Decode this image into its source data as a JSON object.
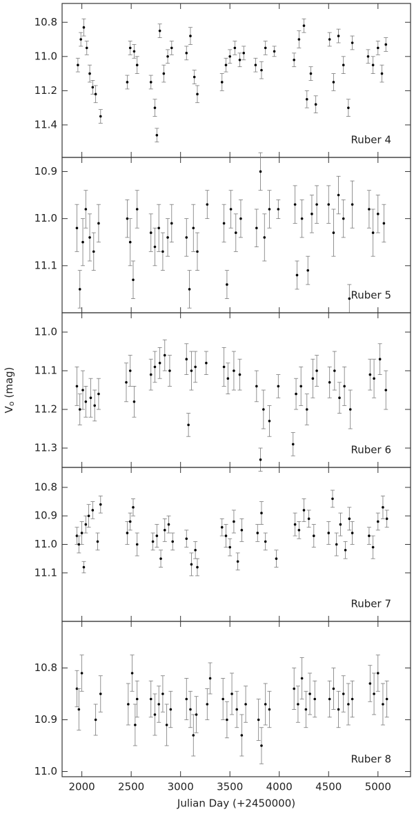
{
  "chart_data": [
    {
      "type": "scatter",
      "annotation": "Ruber 4",
      "y_inverted": true,
      "xlim": [
        1800,
        5330
      ],
      "xticks": [
        2000,
        2500,
        3000,
        3500,
        4000,
        4500,
        5000
      ],
      "show_xtick_labels": false,
      "ylim": [
        10.69,
        11.59
      ],
      "yticks": [
        10.8,
        {
          "value": 11,
          "label": "11.0"
        },
        11.2,
        11.4
      ],
      "color": "#000000",
      "error_color": "#777777",
      "x": [
        1960,
        1990,
        2020,
        2050,
        2080,
        2110,
        2140,
        2190,
        2460,
        2490,
        2530,
        2560,
        2700,
        2740,
        2760,
        2790,
        2830,
        2870,
        2910,
        3060,
        3100,
        3140,
        3170,
        3420,
        3460,
        3500,
        3550,
        3600,
        3640,
        3760,
        3820,
        3860,
        3950,
        4150,
        4200,
        4250,
        4280,
        4320,
        4370,
        4510,
        4550,
        4600,
        4650,
        4700,
        4740,
        4900,
        4950,
        5000,
        5040,
        5080
      ],
      "values": [
        11.05,
        10.9,
        10.83,
        10.95,
        11.1,
        11.18,
        11.22,
        11.35,
        11.15,
        10.95,
        10.97,
        11.05,
        11.15,
        11.3,
        11.46,
        10.85,
        11.1,
        11.0,
        10.95,
        10.98,
        10.88,
        11.12,
        11.22,
        11.15,
        11.05,
        11.0,
        10.95,
        11.02,
        10.98,
        11.05,
        11.08,
        10.95,
        10.97,
        11.02,
        10.9,
        10.82,
        11.25,
        11.1,
        11.28,
        10.9,
        11.15,
        10.88,
        11.05,
        11.3,
        10.92,
        11.0,
        11.05,
        10.95,
        11.1,
        10.93
      ],
      "errors": [
        0.04,
        0.04,
        0.05,
        0.04,
        0.05,
        0.04,
        0.05,
        0.04,
        0.04,
        0.04,
        0.04,
        0.05,
        0.04,
        0.05,
        0.04,
        0.04,
        0.05,
        0.04,
        0.04,
        0.04,
        0.05,
        0.04,
        0.05,
        0.05,
        0.04,
        0.04,
        0.04,
        0.04,
        0.04,
        0.04,
        0.05,
        0.04,
        0.03,
        0.04,
        0.05,
        0.04,
        0.05,
        0.04,
        0.05,
        0.04,
        0.05,
        0.04,
        0.05,
        0.05,
        0.04,
        0.04,
        0.05,
        0.04,
        0.05,
        0.04
      ]
    },
    {
      "type": "scatter",
      "annotation": "Ruber 5",
      "y_inverted": true,
      "xlim": [
        1800,
        5330
      ],
      "xticks": [
        2000,
        2500,
        3000,
        3500,
        4000,
        4500,
        5000
      ],
      "show_xtick_labels": false,
      "ylim": [
        10.87,
        11.2
      ],
      "yticks": [
        10.9,
        {
          "value": 11,
          "label": "11.0"
        },
        11.1
      ],
      "color": "#000000",
      "error_color": "#777777",
      "x": [
        1950,
        1980,
        2010,
        2040,
        2080,
        2120,
        2170,
        2460,
        2490,
        2520,
        2560,
        2700,
        2740,
        2780,
        2820,
        2870,
        2910,
        3060,
        3090,
        3130,
        3170,
        3270,
        3440,
        3470,
        3510,
        3560,
        3610,
        3770,
        3810,
        3850,
        3900,
        3990,
        4160,
        4180,
        4230,
        4290,
        4330,
        4380,
        4500,
        4550,
        4600,
        4650,
        4710,
        4740,
        4910,
        4950,
        5000,
        5060
      ],
      "values": [
        11.02,
        11.15,
        11.05,
        10.98,
        11.04,
        11.07,
        11.01,
        11.0,
        11.05,
        11.13,
        10.98,
        11.03,
        11.06,
        11.02,
        11.07,
        11.04,
        11.01,
        11.04,
        11.15,
        11.02,
        11.07,
        10.97,
        11.01,
        11.14,
        10.98,
        11.03,
        11.0,
        11.02,
        10.9,
        11.04,
        10.98,
        10.98,
        10.97,
        11.12,
        11.0,
        11.11,
        10.99,
        10.97,
        10.97,
        11.03,
        10.95,
        11.0,
        11.17,
        10.97,
        10.98,
        11.03,
        10.99,
        11.01
      ],
      "errors": [
        0.05,
        0.04,
        0.05,
        0.04,
        0.05,
        0.04,
        0.04,
        0.04,
        0.05,
        0.04,
        0.04,
        0.04,
        0.04,
        0.05,
        0.04,
        0.04,
        0.04,
        0.04,
        0.04,
        0.05,
        0.04,
        0.03,
        0.04,
        0.03,
        0.04,
        0.04,
        0.04,
        0.04,
        0.04,
        0.05,
        0.04,
        0.02,
        0.04,
        0.03,
        0.04,
        0.03,
        0.04,
        0.04,
        0.04,
        0.05,
        0.04,
        0.04,
        0.03,
        0.05,
        0.04,
        0.05,
        0.04,
        0.04
      ]
    },
    {
      "type": "scatter",
      "annotation": "Ruber 6",
      "y_inverted": true,
      "xlim": [
        1800,
        5330
      ],
      "xticks": [
        2000,
        2500,
        3000,
        3500,
        4000,
        4500,
        5000
      ],
      "show_xtick_labels": false,
      "ylim": [
        10.95,
        11.35
      ],
      "yticks": [
        {
          "value": 11,
          "label": "11.0"
        },
        11.1,
        11.2,
        11.3
      ],
      "color": "#000000",
      "error_color": "#777777",
      "ylabel": {
        "main": "V",
        "sub": "o",
        "unit": "(mag)"
      },
      "x": [
        1950,
        1980,
        2010,
        2040,
        2090,
        2130,
        2170,
        2450,
        2490,
        2530,
        2700,
        2740,
        2790,
        2840,
        2890,
        3060,
        3080,
        3110,
        3150,
        3260,
        3440,
        3480,
        3540,
        3600,
        3770,
        3810,
        3840,
        3900,
        3990,
        4140,
        4170,
        4220,
        4280,
        4340,
        4380,
        4510,
        4560,
        4610,
        4660,
        4720,
        4920,
        4960,
        5020,
        5080
      ],
      "values": [
        11.14,
        11.2,
        11.15,
        11.18,
        11.17,
        11.19,
        11.16,
        11.13,
        11.1,
        11.18,
        11.11,
        11.09,
        11.08,
        11.06,
        11.1,
        11.07,
        11.24,
        11.1,
        11.09,
        11.08,
        11.09,
        11.12,
        11.1,
        11.11,
        11.14,
        11.33,
        11.2,
        11.23,
        11.14,
        11.29,
        11.16,
        11.14,
        11.2,
        11.12,
        11.1,
        11.13,
        11.1,
        11.17,
        11.14,
        11.2,
        11.11,
        11.12,
        11.07,
        11.15
      ],
      "errors": [
        0.05,
        0.04,
        0.05,
        0.04,
        0.05,
        0.04,
        0.04,
        0.05,
        0.04,
        0.04,
        0.04,
        0.04,
        0.04,
        0.04,
        0.04,
        0.04,
        0.03,
        0.05,
        0.04,
        0.03,
        0.05,
        0.04,
        0.05,
        0.04,
        0.04,
        0.03,
        0.05,
        0.04,
        0.03,
        0.03,
        0.04,
        0.05,
        0.04,
        0.05,
        0.04,
        0.04,
        0.05,
        0.04,
        0.05,
        0.05,
        0.04,
        0.05,
        0.04,
        0.05
      ]
    },
    {
      "type": "scatter",
      "annotation": "Ruber 7",
      "y_inverted": true,
      "xlim": [
        1800,
        5330
      ],
      "xticks": [
        2000,
        2500,
        3000,
        3500,
        4000,
        4500,
        5000
      ],
      "show_xtick_labels": false,
      "ylim": [
        10.73,
        11.27
      ],
      "yticks": [
        10.8,
        10.9,
        {
          "value": 11,
          "label": "11.0"
        },
        11.1
      ],
      "color": "#000000",
      "error_color": "#777777",
      "x": [
        1950,
        1970,
        2000,
        2020,
        2040,
        2070,
        2110,
        2160,
        2190,
        2460,
        2490,
        2520,
        2560,
        2720,
        2760,
        2800,
        2840,
        2880,
        2920,
        3060,
        3110,
        3150,
        3170,
        3420,
        3460,
        3500,
        3540,
        3580,
        3620,
        3780,
        3820,
        3860,
        3970,
        4160,
        4200,
        4250,
        4300,
        4350,
        4500,
        4540,
        4580,
        4620,
        4670,
        4710,
        4740,
        4910,
        4950,
        5000,
        5050,
        5090
      ],
      "values": [
        10.97,
        11.0,
        10.96,
        11.08,
        10.93,
        10.9,
        10.88,
        10.99,
        10.86,
        10.96,
        10.92,
        10.87,
        11.0,
        10.99,
        10.97,
        11.05,
        10.95,
        10.93,
        10.99,
        10.98,
        11.07,
        11.02,
        11.08,
        10.94,
        10.97,
        11.01,
        10.92,
        11.06,
        10.95,
        10.96,
        10.89,
        10.99,
        11.05,
        10.93,
        10.95,
        10.88,
        10.91,
        10.97,
        10.96,
        10.84,
        11.0,
        10.93,
        11.02,
        10.91,
        10.96,
        10.97,
        11.01,
        10.92,
        10.87,
        10.91
      ],
      "errors": [
        0.03,
        0.03,
        0.04,
        0.02,
        0.03,
        0.04,
        0.03,
        0.03,
        0.03,
        0.04,
        0.03,
        0.03,
        0.04,
        0.03,
        0.04,
        0.03,
        0.04,
        0.03,
        0.03,
        0.03,
        0.04,
        0.03,
        0.03,
        0.03,
        0.04,
        0.03,
        0.04,
        0.03,
        0.04,
        0.03,
        0.04,
        0.03,
        0.03,
        0.04,
        0.03,
        0.04,
        0.03,
        0.04,
        0.04,
        0.03,
        0.04,
        0.04,
        0.03,
        0.04,
        0.04,
        0.03,
        0.04,
        0.03,
        0.04,
        0.03
      ]
    },
    {
      "type": "scatter",
      "annotation": "Ruber 8",
      "y_inverted": true,
      "xlim": [
        1800,
        5330
      ],
      "xticks": [
        2000,
        2500,
        3000,
        3500,
        4000,
        4500,
        5000
      ],
      "show_xtick_labels": true,
      "xlabel": "Julian Day (+2450000)",
      "ylim": [
        10.71,
        11.01
      ],
      "yticks": [
        10.8,
        10.9,
        {
          "value": 11,
          "label": "11.0"
        }
      ],
      "color": "#000000",
      "error_color": "#777777",
      "x": [
        1950,
        1970,
        2000,
        2140,
        2190,
        2470,
        2510,
        2540,
        2560,
        2700,
        2740,
        2780,
        2820,
        2860,
        2900,
        3060,
        3100,
        3130,
        3160,
        3270,
        3300,
        3430,
        3470,
        3520,
        3570,
        3620,
        3660,
        3790,
        3820,
        3860,
        3900,
        4150,
        4190,
        4230,
        4270,
        4310,
        4360,
        4510,
        4550,
        4600,
        4650,
        4700,
        4740,
        4920,
        4960,
        5000,
        5050,
        5090
      ],
      "values": [
        10.84,
        10.88,
        10.81,
        10.9,
        10.85,
        10.87,
        10.81,
        10.91,
        10.86,
        10.86,
        10.89,
        10.87,
        10.85,
        10.91,
        10.88,
        10.86,
        10.88,
        10.93,
        10.89,
        10.87,
        10.82,
        10.86,
        10.9,
        10.85,
        10.88,
        10.93,
        10.87,
        10.9,
        10.95,
        10.87,
        10.88,
        10.84,
        10.87,
        10.82,
        10.88,
        10.85,
        10.86,
        10.86,
        10.84,
        10.88,
        10.85,
        10.87,
        10.86,
        10.83,
        10.85,
        10.81,
        10.87,
        10.86
      ],
      "errors": [
        0.035,
        0.04,
        0.035,
        0.03,
        0.035,
        0.04,
        0.035,
        0.04,
        0.035,
        0.035,
        0.04,
        0.035,
        0.035,
        0.04,
        0.035,
        0.04,
        0.035,
        0.04,
        0.035,
        0.03,
        0.03,
        0.04,
        0.035,
        0.04,
        0.035,
        0.04,
        0.035,
        0.04,
        0.035,
        0.04,
        0.035,
        0.04,
        0.035,
        0.04,
        0.035,
        0.04,
        0.035,
        0.035,
        0.04,
        0.035,
        0.035,
        0.04,
        0.035,
        0.035,
        0.04,
        0.035,
        0.04,
        0.035
      ]
    }
  ]
}
